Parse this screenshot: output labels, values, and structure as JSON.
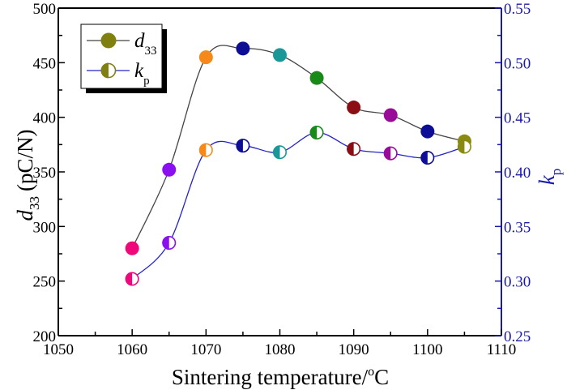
{
  "chart_data": {
    "type": "line",
    "title": "",
    "xlabel": "Sintering temperature/°C",
    "xlabel_parts": {
      "main": "Sintering temperature/",
      "sup": "o",
      "unit": "C"
    },
    "ylabel_left": {
      "symbol": "d",
      "sub": "33",
      "unit": "(pC/N)"
    },
    "ylabel_right": {
      "symbol": "k",
      "sub": "p"
    },
    "xlim": [
      1050,
      1110
    ],
    "ylim_left": [
      200,
      500
    ],
    "ylim_right": [
      0.25,
      0.55
    ],
    "x_ticks": [
      1050,
      1060,
      1070,
      1080,
      1090,
      1100,
      1110
    ],
    "y_left_ticks": [
      200,
      250,
      300,
      350,
      400,
      450,
      500
    ],
    "y_right_ticks": [
      "0.25",
      "0.30",
      "0.35",
      "0.40",
      "0.45",
      "0.50",
      "0.55"
    ],
    "grid": false,
    "legend_position": "top-left",
    "x": [
      1060,
      1065,
      1070,
      1075,
      1080,
      1085,
      1090,
      1095,
      1100,
      1105
    ],
    "point_colors": [
      "#f0087a",
      "#8a10f0",
      "#f58a1a",
      "#0d0d96",
      "#1a9898",
      "#188a18",
      "#8c0d14",
      "#980c98",
      "#0d0d96",
      "#8a8a10"
    ],
    "series": [
      {
        "name": "d33",
        "axis": "left",
        "line_color": "#444444",
        "marker": "filled-circle",
        "values": [
          280,
          352,
          455,
          463,
          457,
          436,
          409,
          402,
          387,
          378
        ]
      },
      {
        "name": "kp",
        "axis": "right",
        "line_color": "#2323c8",
        "marker": "half-filled-circle",
        "values": [
          0.302,
          0.335,
          0.42,
          0.424,
          0.418,
          0.436,
          0.421,
          0.417,
          0.413,
          0.423
        ]
      }
    ],
    "legend": [
      {
        "label": "d",
        "sub": "33",
        "color": "#808010",
        "line_color": "#444444",
        "marker": "filled-circle"
      },
      {
        "label": "k",
        "sub": "p",
        "color": "#808010",
        "line_color": "#2323c8",
        "marker": "half-filled-circle"
      }
    ]
  }
}
